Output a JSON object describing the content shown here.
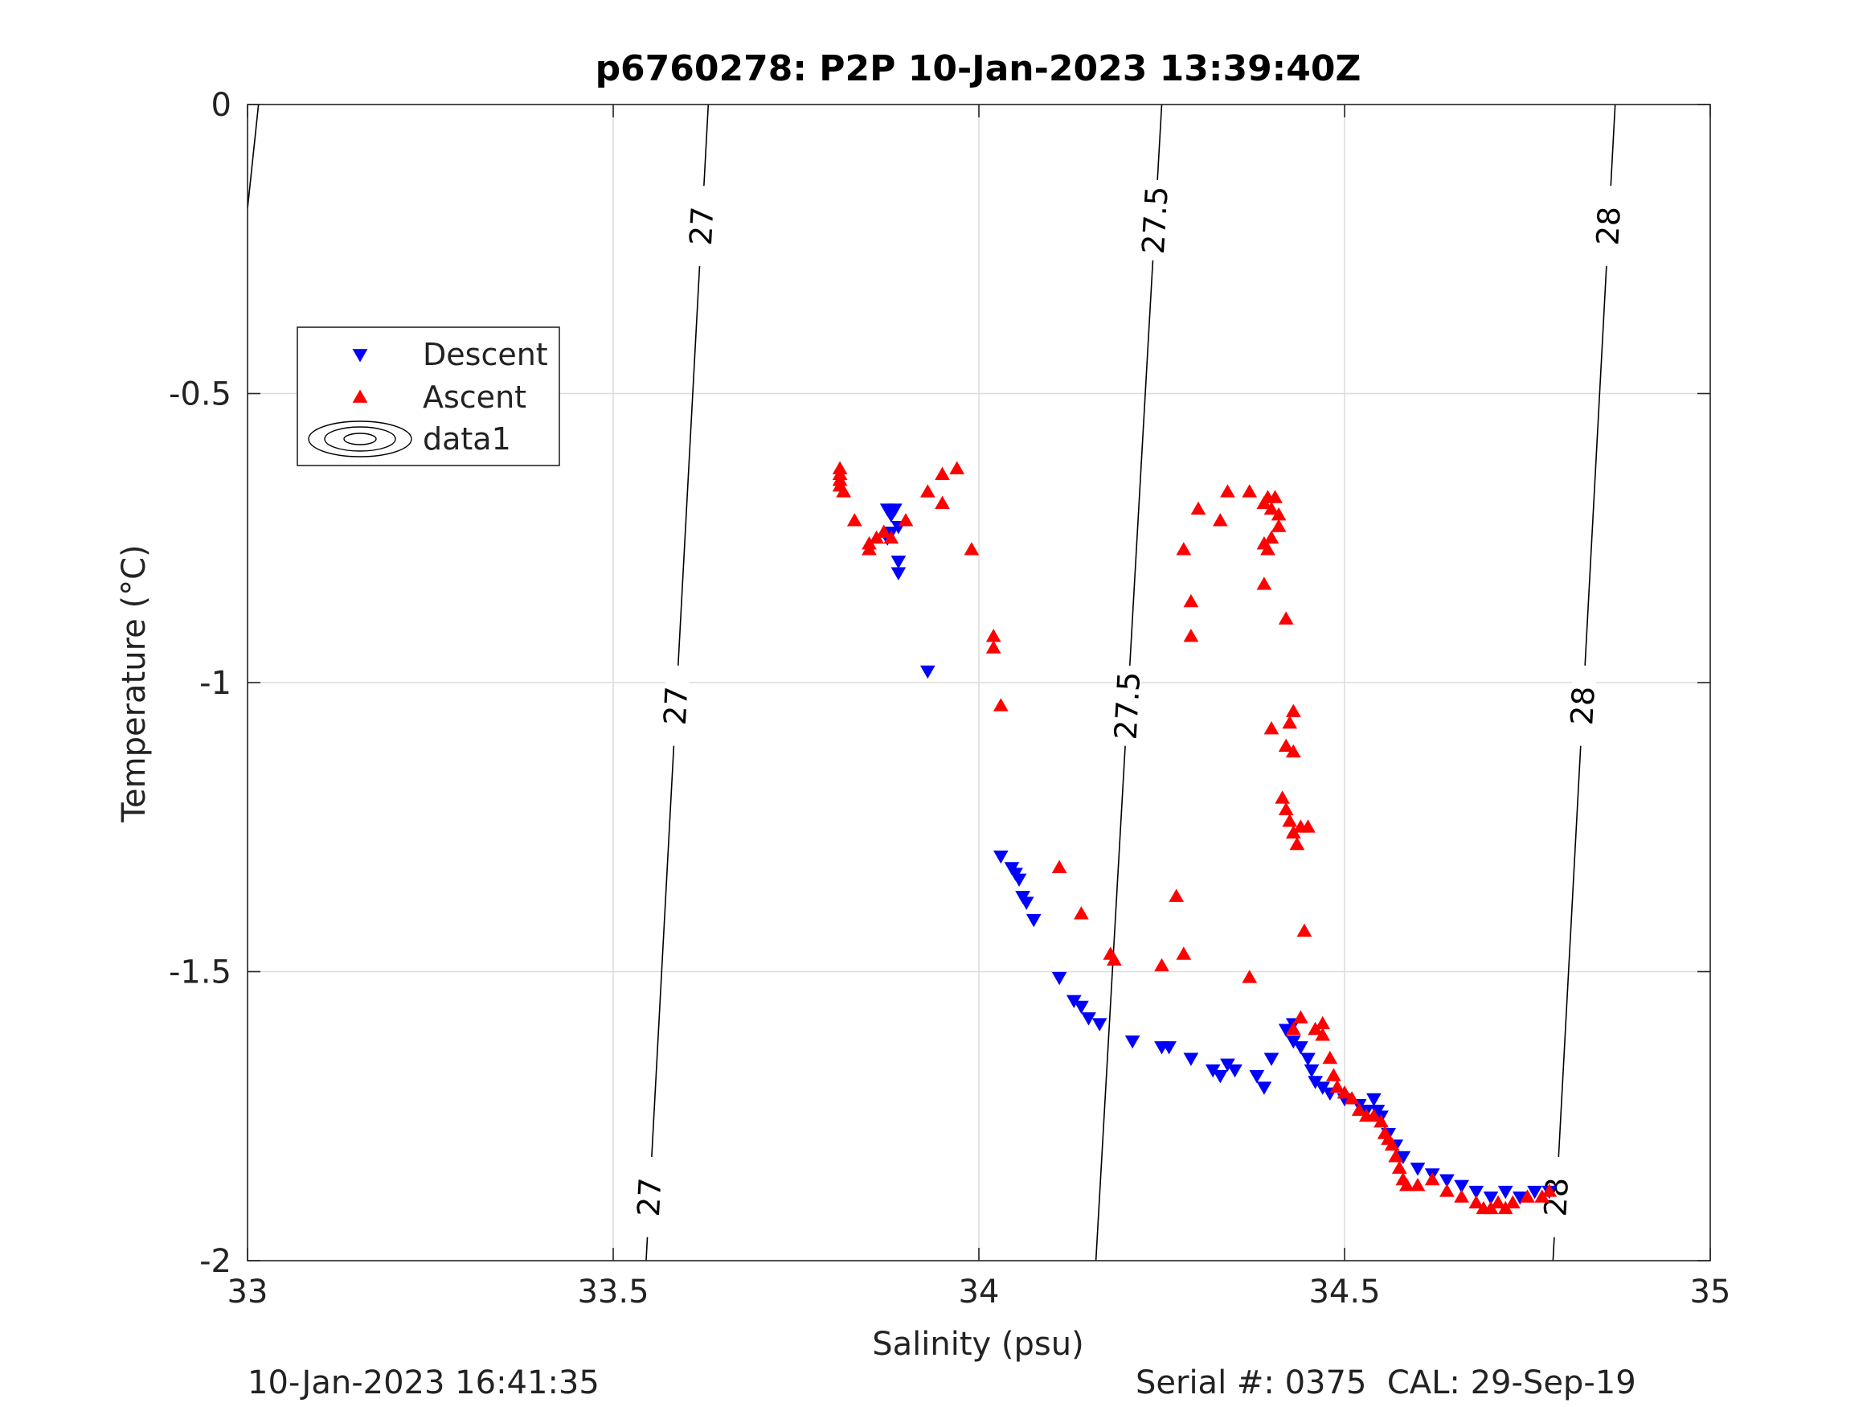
{
  "chart_data": {
    "type": "scatter",
    "title": "p6760278: P2P 10-Jan-2023 13:39:40Z",
    "xlabel": "Salinity (psu)",
    "ylabel": "Temperature (°C)",
    "xlim": [
      33,
      35
    ],
    "ylim": [
      -2,
      0
    ],
    "xticks": [
      33,
      33.5,
      34,
      34.5,
      35
    ],
    "yticks": [
      -2,
      -1.5,
      -1,
      -0.5,
      0
    ],
    "xtick_labels": [
      "33",
      "33.5",
      "34",
      "34.5",
      "35"
    ],
    "ytick_labels": [
      "-2",
      "-1.5",
      "-1",
      "-0.5",
      "0"
    ],
    "grid": true,
    "legend_position": "upper-left",
    "series": [
      {
        "name": "Descent",
        "marker": "triangle-down",
        "color": "#0000ff",
        "points": [
          [
            33.875,
            -0.7
          ],
          [
            33.88,
            -0.71
          ],
          [
            33.885,
            -0.7
          ],
          [
            33.89,
            -0.73
          ],
          [
            33.875,
            -0.75
          ],
          [
            33.88,
            -0.74
          ],
          [
            33.89,
            -0.79
          ],
          [
            33.89,
            -0.81
          ],
          [
            33.93,
            -0.98
          ],
          [
            34.03,
            -1.3
          ],
          [
            34.045,
            -1.32
          ],
          [
            34.05,
            -1.33
          ],
          [
            34.055,
            -1.34
          ],
          [
            34.06,
            -1.37
          ],
          [
            34.065,
            -1.38
          ],
          [
            34.075,
            -1.41
          ],
          [
            34.11,
            -1.51
          ],
          [
            34.13,
            -1.55
          ],
          [
            34.14,
            -1.56
          ],
          [
            34.15,
            -1.58
          ],
          [
            34.165,
            -1.59
          ],
          [
            34.21,
            -1.62
          ],
          [
            34.25,
            -1.63
          ],
          [
            34.26,
            -1.63
          ],
          [
            34.29,
            -1.65
          ],
          [
            34.32,
            -1.67
          ],
          [
            34.33,
            -1.68
          ],
          [
            34.34,
            -1.66
          ],
          [
            34.35,
            -1.67
          ],
          [
            34.38,
            -1.68
          ],
          [
            34.39,
            -1.7
          ],
          [
            34.4,
            -1.65
          ],
          [
            34.42,
            -1.6
          ],
          [
            34.43,
            -1.59
          ],
          [
            34.43,
            -1.62
          ],
          [
            34.44,
            -1.63
          ],
          [
            34.45,
            -1.65
          ],
          [
            34.455,
            -1.67
          ],
          [
            34.46,
            -1.69
          ],
          [
            34.47,
            -1.7
          ],
          [
            34.48,
            -1.71
          ],
          [
            34.5,
            -1.72
          ],
          [
            34.52,
            -1.73
          ],
          [
            34.53,
            -1.74
          ],
          [
            34.54,
            -1.72
          ],
          [
            34.545,
            -1.74
          ],
          [
            34.55,
            -1.75
          ],
          [
            34.56,
            -1.78
          ],
          [
            34.57,
            -1.8
          ],
          [
            34.58,
            -1.82
          ],
          [
            34.6,
            -1.84
          ],
          [
            34.62,
            -1.85
          ],
          [
            34.64,
            -1.86
          ],
          [
            34.66,
            -1.87
          ],
          [
            34.68,
            -1.88
          ],
          [
            34.7,
            -1.89
          ],
          [
            34.72,
            -1.88
          ],
          [
            34.74,
            -1.89
          ],
          [
            34.76,
            -1.88
          ],
          [
            34.78,
            -1.88
          ]
        ]
      },
      {
        "name": "Ascent",
        "marker": "triangle-up",
        "color": "#ff0000",
        "points": [
          [
            33.81,
            -0.63
          ],
          [
            33.81,
            -0.64
          ],
          [
            33.81,
            -0.65
          ],
          [
            33.81,
            -0.66
          ],
          [
            33.815,
            -0.67
          ],
          [
            33.83,
            -0.72
          ],
          [
            33.85,
            -0.76
          ],
          [
            33.85,
            -0.77
          ],
          [
            33.86,
            -0.75
          ],
          [
            33.87,
            -0.74
          ],
          [
            33.88,
            -0.75
          ],
          [
            33.9,
            -0.72
          ],
          [
            33.93,
            -0.67
          ],
          [
            33.95,
            -0.69
          ],
          [
            33.95,
            -0.64
          ],
          [
            33.97,
            -0.63
          ],
          [
            33.99,
            -0.77
          ],
          [
            34.02,
            -0.92
          ],
          [
            34.02,
            -0.94
          ],
          [
            34.03,
            -1.04
          ],
          [
            34.28,
            -0.77
          ],
          [
            34.29,
            -0.86
          ],
          [
            34.29,
            -0.92
          ],
          [
            34.3,
            -0.7
          ],
          [
            34.33,
            -0.72
          ],
          [
            34.34,
            -0.67
          ],
          [
            34.37,
            -0.67
          ],
          [
            34.39,
            -0.69
          ],
          [
            34.395,
            -0.68
          ],
          [
            34.4,
            -0.7
          ],
          [
            34.405,
            -0.68
          ],
          [
            34.41,
            -0.71
          ],
          [
            34.41,
            -0.73
          ],
          [
            34.4,
            -0.75
          ],
          [
            34.395,
            -0.77
          ],
          [
            34.39,
            -0.76
          ],
          [
            34.39,
            -0.83
          ],
          [
            34.42,
            -0.89
          ],
          [
            34.4,
            -1.08
          ],
          [
            34.42,
            -1.11
          ],
          [
            34.425,
            -1.07
          ],
          [
            34.43,
            -1.05
          ],
          [
            34.43,
            -1.12
          ],
          [
            34.415,
            -1.2
          ],
          [
            34.42,
            -1.22
          ],
          [
            34.425,
            -1.24
          ],
          [
            34.43,
            -1.26
          ],
          [
            34.435,
            -1.28
          ],
          [
            34.44,
            -1.25
          ],
          [
            34.45,
            -1.25
          ],
          [
            34.445,
            -1.43
          ],
          [
            34.43,
            -1.6
          ],
          [
            34.11,
            -1.32
          ],
          [
            34.14,
            -1.4
          ],
          [
            34.18,
            -1.47
          ],
          [
            34.185,
            -1.48
          ],
          [
            34.25,
            -1.49
          ],
          [
            34.27,
            -1.37
          ],
          [
            34.28,
            -1.47
          ],
          [
            34.37,
            -1.51
          ],
          [
            34.44,
            -1.58
          ],
          [
            34.46,
            -1.6
          ],
          [
            34.47,
            -1.59
          ],
          [
            34.47,
            -1.61
          ],
          [
            34.48,
            -1.65
          ],
          [
            34.485,
            -1.68
          ],
          [
            34.49,
            -1.7
          ],
          [
            34.5,
            -1.71
          ],
          [
            34.51,
            -1.72
          ],
          [
            34.52,
            -1.74
          ],
          [
            34.53,
            -1.75
          ],
          [
            34.54,
            -1.75
          ],
          [
            34.55,
            -1.76
          ],
          [
            34.555,
            -1.78
          ],
          [
            34.56,
            -1.79
          ],
          [
            34.565,
            -1.8
          ],
          [
            34.57,
            -1.82
          ],
          [
            34.575,
            -1.84
          ],
          [
            34.58,
            -1.86
          ],
          [
            34.585,
            -1.87
          ],
          [
            34.6,
            -1.87
          ],
          [
            34.62,
            -1.86
          ],
          [
            34.64,
            -1.88
          ],
          [
            34.66,
            -1.89
          ],
          [
            34.68,
            -1.9
          ],
          [
            34.69,
            -1.91
          ],
          [
            34.7,
            -1.91
          ],
          [
            34.71,
            -1.9
          ],
          [
            34.72,
            -1.91
          ],
          [
            34.73,
            -1.9
          ],
          [
            34.75,
            -1.89
          ],
          [
            34.77,
            -1.89
          ],
          [
            34.78,
            -1.88
          ]
        ]
      },
      {
        "name": "data1",
        "type": "contour",
        "color": "#000000",
        "lines": [
          {
            "level": "27",
            "labels": [
              "27",
              "27",
              "27"
            ],
            "points": [
              [
                33.63,
                0
              ],
              [
                33.545,
                -2
              ]
            ],
            "label_y": [
              -0.21,
              -1.04,
              -1.89
            ]
          },
          {
            "level": "27.5",
            "labels": [
              "27.5",
              "27.5"
            ],
            "points": [
              [
                34.25,
                0
              ],
              [
                34.16,
                -2
              ]
            ],
            "label_y": [
              -0.2,
              -1.04
            ]
          },
          {
            "level": "28",
            "labels": [
              "28",
              "28",
              "28"
            ],
            "points": [
              [
                34.87,
                0
              ],
              [
                34.785,
                -2
              ]
            ],
            "label_y": [
              -0.21,
              -1.04,
              -1.89
            ]
          },
          {
            "level": "",
            "labels": [],
            "points": [
              [
                33.015,
                0
              ],
              [
                33.0,
                -0.18
              ]
            ],
            "label_y": []
          }
        ]
      }
    ]
  },
  "footer": {
    "left": "10-Jan-2023 16:41:35",
    "right": "Serial #: 0375  CAL: 29-Sep-19"
  }
}
